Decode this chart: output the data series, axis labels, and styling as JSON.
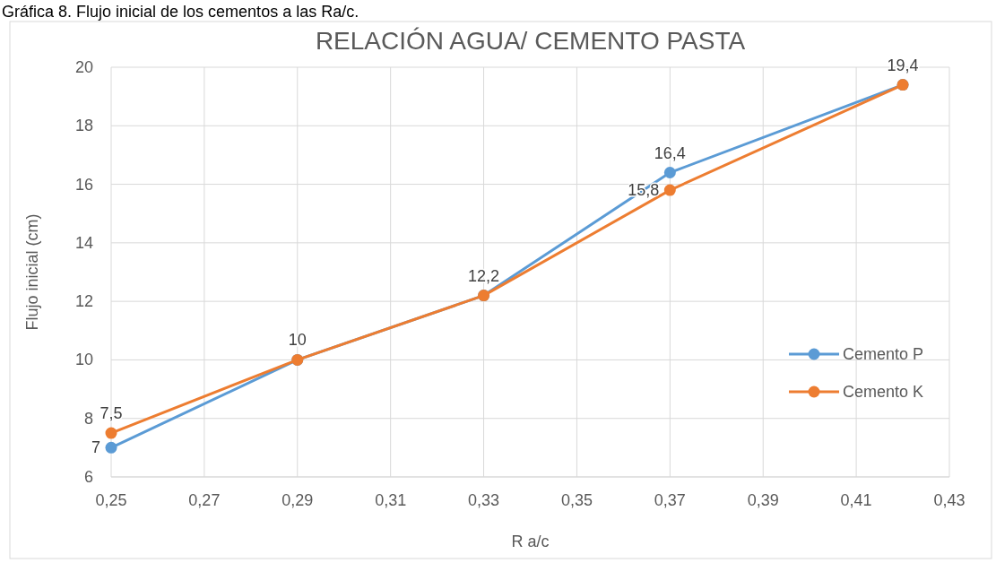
{
  "chart_data": {
    "type": "line",
    "title": "RELACIÓN AGUA/ CEMENTO PASTA",
    "xlabel": "R a/c",
    "ylabel": "Flujo inicial (cm)",
    "annotations": [
      "Gráfica 8. Flujo inicial de los cementos a las Ra/c."
    ],
    "series": [
      {
        "name": "Cemento P",
        "color": "#5b9bd5",
        "x": [
          0.25,
          0.29,
          0.33,
          0.37,
          0.42
        ],
        "values": [
          7,
          10,
          12.2,
          16.4,
          19.4
        ],
        "value_labels": [
          "7",
          "10",
          "12,2",
          "16,4",
          "19,4"
        ]
      },
      {
        "name": "Cemento K",
        "color": "#ed7d31",
        "x": [
          0.25,
          0.29,
          0.33,
          0.37,
          0.42
        ],
        "values": [
          7.5,
          10,
          12.2,
          15.8,
          19.4
        ],
        "value_labels": [
          "7,5",
          null,
          null,
          "15,8",
          null
        ]
      }
    ],
    "xlim": [
      0.25,
      0.43
    ],
    "xticks": [
      {
        "value": 0.25,
        "label": "0,25"
      },
      {
        "value": 0.27,
        "label": "0,27"
      },
      {
        "value": 0.29,
        "label": "0,29"
      },
      {
        "value": 0.31,
        "label": "0,31"
      },
      {
        "value": 0.33,
        "label": "0,33"
      },
      {
        "value": 0.35,
        "label": "0,35"
      },
      {
        "value": 0.37,
        "label": "0,37"
      },
      {
        "value": 0.39,
        "label": "0,39"
      },
      {
        "value": 0.41,
        "label": "0,41"
      },
      {
        "value": 0.43,
        "label": "0,43"
      }
    ],
    "ylim": [
      6,
      20
    ],
    "yticks": [
      6,
      8,
      10,
      12,
      14,
      16,
      18,
      20
    ],
    "grid": true,
    "legend": "right",
    "marker": "circle",
    "line_style": "solid"
  }
}
